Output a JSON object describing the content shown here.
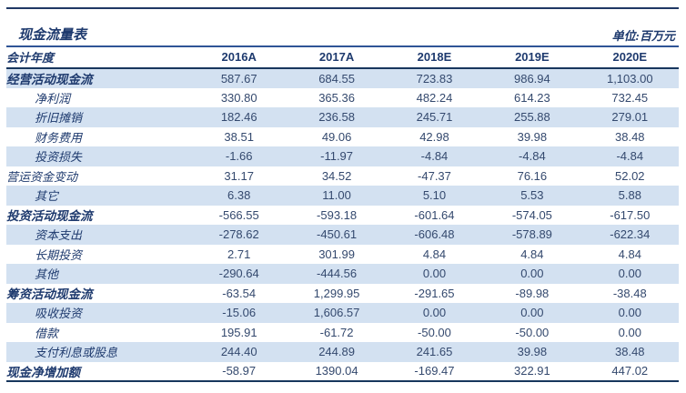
{
  "title": "现金流量表",
  "unit_label": "单位:百万元",
  "colors": {
    "accent_navy": "#1F3864",
    "stripe_blue": "#D3E1F1",
    "rule_blue": "#2F5496",
    "number_text": "#34496E"
  },
  "table": {
    "header": {
      "label": "会计年度",
      "years": [
        "2016A",
        "2017A",
        "2018E",
        "2019E",
        "2020E"
      ]
    },
    "rows": [
      {
        "label": "经营活动现金流",
        "indent": 0,
        "bold": true,
        "values": [
          "587.67",
          "684.55",
          "723.83",
          "986.94",
          "1,103.00"
        ]
      },
      {
        "label": "净利润",
        "indent": 1,
        "bold": false,
        "values": [
          "330.80",
          "365.36",
          "482.24",
          "614.23",
          "732.45"
        ]
      },
      {
        "label": "折旧摊销",
        "indent": 1,
        "bold": false,
        "values": [
          "182.46",
          "236.58",
          "245.71",
          "255.88",
          "279.01"
        ]
      },
      {
        "label": "财务费用",
        "indent": 1,
        "bold": false,
        "values": [
          "38.51",
          "49.06",
          "42.98",
          "39.98",
          "38.48"
        ]
      },
      {
        "label": "投资损失",
        "indent": 1,
        "bold": false,
        "values": [
          "-1.66",
          "-11.97",
          "-4.84",
          "-4.84",
          "-4.84"
        ]
      },
      {
        "label": "营运资金变动",
        "indent": 0,
        "bold": false,
        "values": [
          "31.17",
          "34.52",
          "-47.37",
          "76.16",
          "52.02"
        ]
      },
      {
        "label": "其它",
        "indent": 1,
        "bold": false,
        "values": [
          "6.38",
          "11.00",
          "5.10",
          "5.53",
          "5.88"
        ]
      },
      {
        "label": "投资活动现金流",
        "indent": 0,
        "bold": true,
        "values": [
          "-566.55",
          "-593.18",
          "-601.64",
          "-574.05",
          "-617.50"
        ]
      },
      {
        "label": "资本支出",
        "indent": 1,
        "bold": false,
        "values": [
          "-278.62",
          "-450.61",
          "-606.48",
          "-578.89",
          "-622.34"
        ]
      },
      {
        "label": "长期投资",
        "indent": 1,
        "bold": false,
        "values": [
          "2.71",
          "301.99",
          "4.84",
          "4.84",
          "4.84"
        ]
      },
      {
        "label": "其他",
        "indent": 1,
        "bold": false,
        "values": [
          "-290.64",
          "-444.56",
          "0.00",
          "0.00",
          "0.00"
        ]
      },
      {
        "label": "筹资活动现金流",
        "indent": 0,
        "bold": true,
        "values": [
          "-63.54",
          "1,299.95",
          "-291.65",
          "-89.98",
          "-38.48"
        ]
      },
      {
        "label": "吸收投资",
        "indent": 1,
        "bold": false,
        "values": [
          "-15.06",
          "1,606.57",
          "0.00",
          "0.00",
          "0.00"
        ]
      },
      {
        "label": "借款",
        "indent": 1,
        "bold": false,
        "values": [
          "195.91",
          "-61.72",
          "-50.00",
          "-50.00",
          "0.00"
        ]
      },
      {
        "label": "支付利息或股息",
        "indent": 1,
        "bold": false,
        "values": [
          "244.40",
          "244.89",
          "241.65",
          "39.98",
          "38.48"
        ]
      },
      {
        "label": "现金净增加额",
        "indent": 0,
        "bold": true,
        "values": [
          "-58.97",
          "1390.04",
          "-169.47",
          "322.91",
          "447.02"
        ]
      }
    ]
  }
}
